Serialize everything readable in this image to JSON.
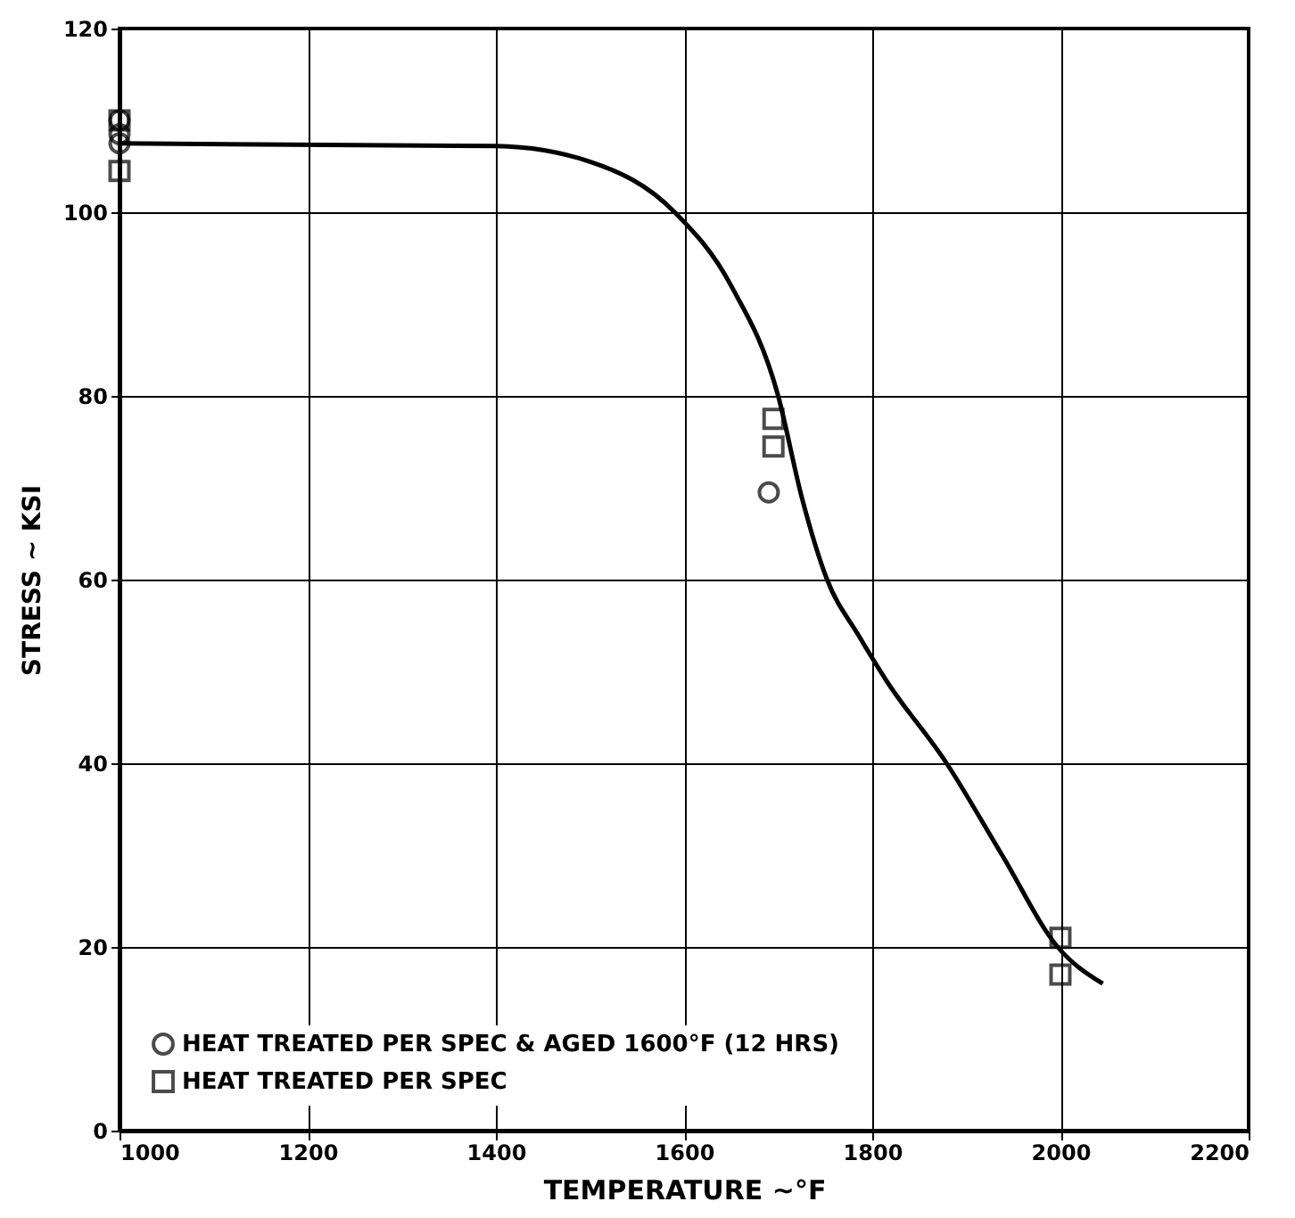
{
  "chart_data": {
    "type": "scatter",
    "xlabel": "TEMPERATURE ~°F",
    "ylabel": "STRESS ~ KSI",
    "xlim": [
      1000,
      2200
    ],
    "ylim": [
      0,
      120
    ],
    "xticks": [
      {
        "value": 1000,
        "label": "1000"
      },
      {
        "value": 1200,
        "label": "1200"
      },
      {
        "value": 1400,
        "label": "1400"
      },
      {
        "value": 1600,
        "label": "1600"
      },
      {
        "value": 1800,
        "label": "1800"
      },
      {
        "value": 2000,
        "label": "2000"
      },
      {
        "value": 2200,
        "label": "2200"
      }
    ],
    "yticks": [
      0,
      20,
      40,
      60,
      80,
      100,
      120
    ],
    "grid": true,
    "legend": "bottom left",
    "series": [
      {
        "name": "HEAT TREATED PER SPEC & AGED 1600°F (12 HRS)",
        "marker": "circle",
        "color": "#000000",
        "x": [
          1000,
          1000,
          1000,
          1690
        ],
        "values": [
          110,
          108.5,
          107.5,
          69.5
        ]
      },
      {
        "name": "HEAT TREATED PER SPEC",
        "marker": "square",
        "color": "#000000",
        "x": [
          1000,
          1000,
          1695,
          1695,
          2000,
          2000
        ],
        "values": [
          110,
          104.5,
          77.5,
          74.5,
          21,
          17
        ]
      },
      {
        "type": "line",
        "color": "#000000",
        "x": [
          1000,
          1400,
          1500,
          1590,
          1650,
          1700,
          1725,
          1752,
          1785,
          1815,
          1879,
          1938,
          1997,
          2045
        ],
        "values": [
          107.5,
          107.2,
          105.5,
          100,
          92,
          80,
          69,
          60,
          54,
          49,
          40,
          30,
          20,
          16
        ]
      }
    ]
  }
}
